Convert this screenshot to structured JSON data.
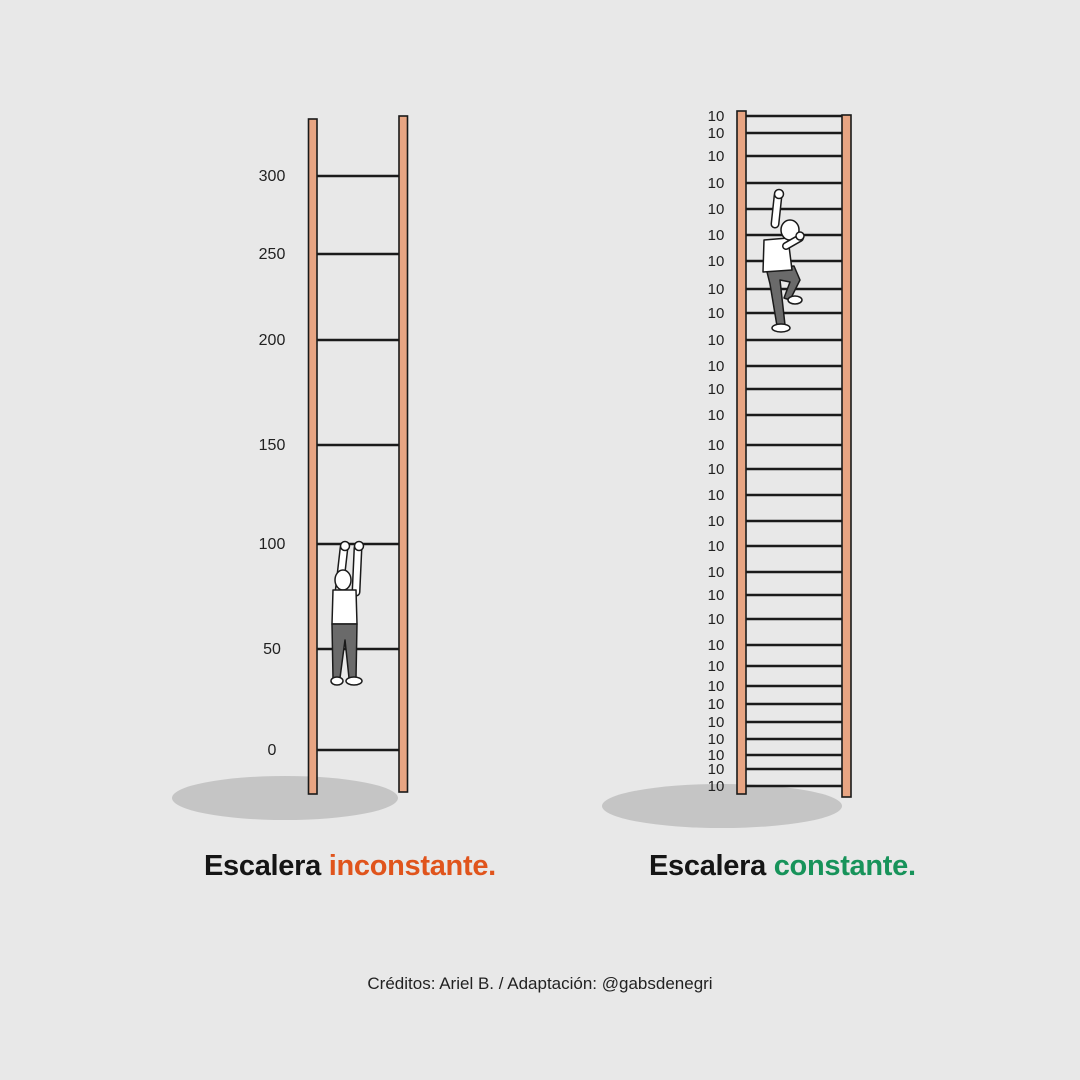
{
  "colors": {
    "background": "#e8e8e8",
    "rail": "#e8a583",
    "rung": "#1a1a1a",
    "shadow": "#c5c5c5",
    "inconstant_highlight": "#e0541c",
    "constant_highlight": "#17935a"
  },
  "left_ladder": {
    "rung_labels": [
      "0",
      "50",
      "100",
      "150",
      "200",
      "250",
      "300"
    ],
    "caption_prefix": "Escalera",
    "caption_highlight": "inconstante."
  },
  "right_ladder": {
    "rung_labels": [
      "10",
      "10",
      "10",
      "10",
      "10",
      "10",
      "10",
      "10",
      "10",
      "10",
      "10",
      "10",
      "10",
      "10",
      "10",
      "10",
      "10",
      "10",
      "10",
      "10",
      "10",
      "10",
      "10",
      "10",
      "10",
      "10",
      "10",
      "10",
      "10",
      "10"
    ],
    "caption_prefix": "Escalera",
    "caption_highlight": "constante."
  },
  "figures": {
    "left": "hanging-person-icon",
    "right": "climbing-person-icon"
  },
  "credits": "Créditos: Ariel B. / Adaptación: @gabsdenegri"
}
